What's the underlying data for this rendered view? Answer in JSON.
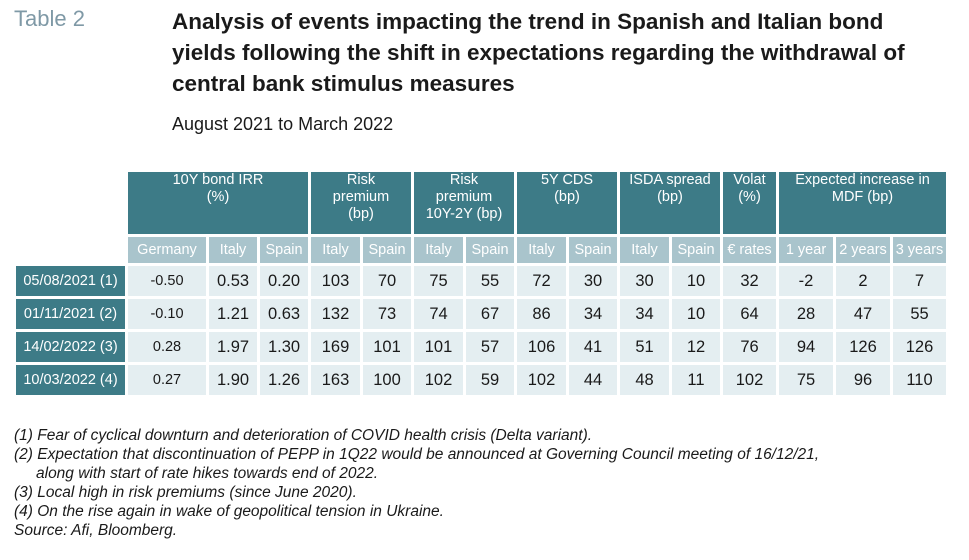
{
  "table_label": "Table 2",
  "title": "Analysis of events impacting the trend in Spanish and Italian bond yields following the shift in expectations regarding the withdrawal of central bank stimulus measures",
  "subtitle": "August 2021 to March 2022",
  "groups": [
    {
      "label": "10Y bond IRR\n(%)",
      "span": 3
    },
    {
      "label": "Risk\npremium\n(bp)",
      "span": 2
    },
    {
      "label": "Risk\npremium\n10Y-2Y (bp)",
      "span": 2
    },
    {
      "label": "5Y CDS\n(bp)",
      "span": 2
    },
    {
      "label": "ISDA spread\n(bp)",
      "span": 2
    },
    {
      "label": "Volat\n(%)",
      "span": 1
    },
    {
      "label": "Expected increase in\nMDF (bp)",
      "span": 3
    }
  ],
  "subheaders": [
    "Germany",
    "Italy",
    "Spain",
    "Italy",
    "Spain",
    "Italy",
    "Spain",
    "Italy",
    "Spain",
    "Italy",
    "Spain",
    "€ rates",
    "1 year",
    "2 years",
    "3 years"
  ],
  "rows": [
    {
      "label": "05/08/2021 (1)",
      "values": [
        "-0.50",
        "0.53",
        "0.20",
        "103",
        "70",
        "75",
        "55",
        "72",
        "30",
        "30",
        "10",
        "32",
        "-2",
        "2",
        "7"
      ]
    },
    {
      "label": "01/11/2021 (2)",
      "values": [
        "-0.10",
        "1.21",
        "0.63",
        "132",
        "73",
        "74",
        "67",
        "86",
        "34",
        "34",
        "10",
        "64",
        "28",
        "47",
        "55"
      ]
    },
    {
      "label": "14/02/2022 (3)",
      "values": [
        "0.28",
        "1.97",
        "1.30",
        "169",
        "101",
        "101",
        "57",
        "106",
        "41",
        "51",
        "12",
        "76",
        "94",
        "126",
        "126"
      ]
    },
    {
      "label": "10/03/2022 (4)",
      "values": [
        "0.27",
        "1.90",
        "1.26",
        "163",
        "100",
        "102",
        "59",
        "102",
        "44",
        "48",
        "11",
        "102",
        "75",
        "96",
        "110"
      ]
    }
  ],
  "notes": [
    "(1) Fear of cyclical downturn and deterioration of COVID health crisis (Delta variant).",
    "(2) Expectation that discontinuation of PEPP in 1Q22 would be announced at Governing Council meeting of 16/12/21,",
    "along with start of rate hikes towards end of 2022.",
    "(3) Local high in risk premiums (since June 2020).",
    "(4) On the rise again in wake of geopolitical tension in Ukraine.",
    "Source: Afi, Bloomberg."
  ],
  "colors": {
    "header_dark": "#3d7b87",
    "header_light": "#a9c4cc",
    "cell_bg": "#e4eef1",
    "label_gray": "#7f99a6"
  }
}
